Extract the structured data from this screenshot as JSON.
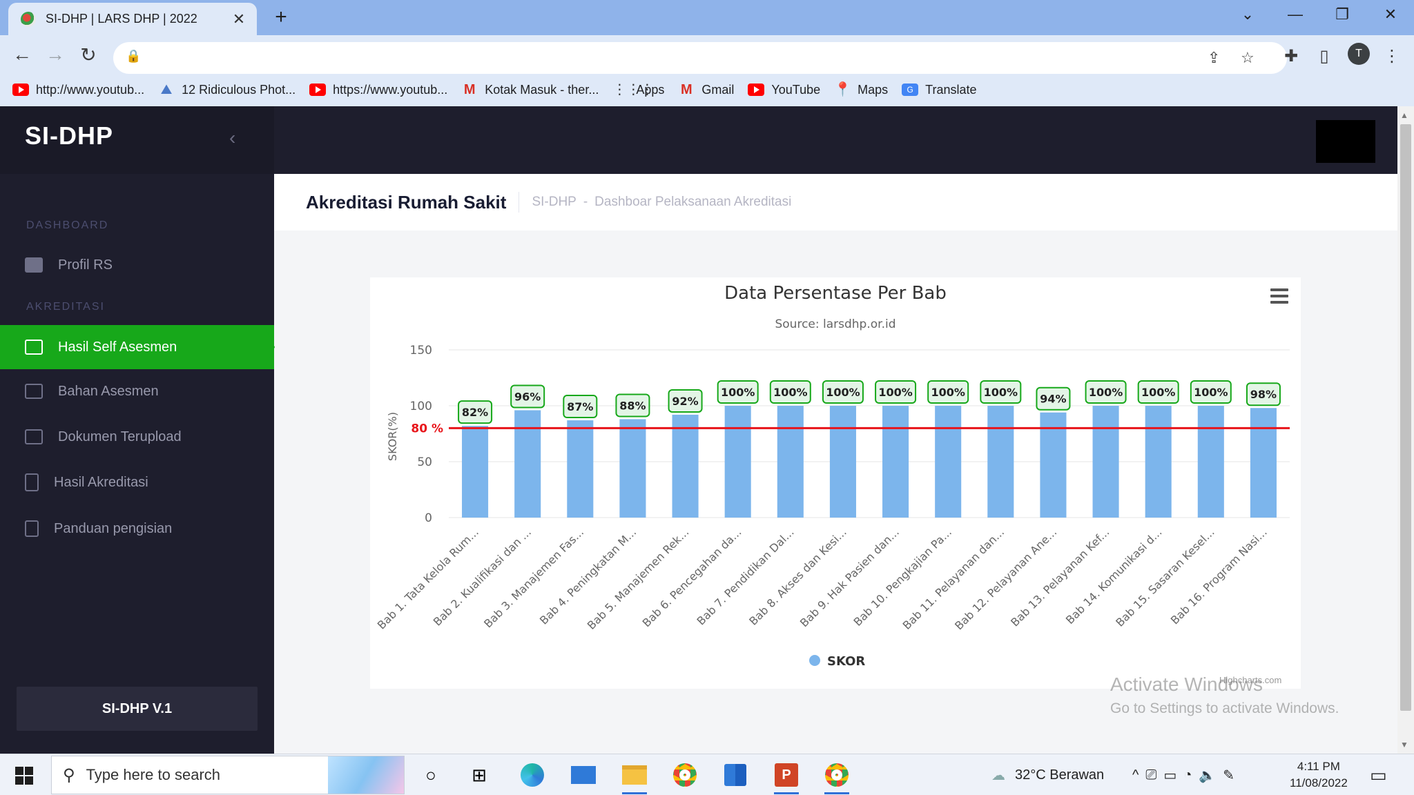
{
  "browser": {
    "tab_title": "SI-DHP | LARS DHP | 2022",
    "new_tab_glyph": "+",
    "bookmarks": [
      {
        "icon": "youtube-icon",
        "label": "http://www.youtub..."
      },
      {
        "icon": "photo-icon",
        "label": "12 Ridiculous Phot..."
      },
      {
        "icon": "youtube-icon",
        "label": "https://www.youtub..."
      },
      {
        "icon": "gmail-icon",
        "label": "Kotak Masuk - ther..."
      },
      {
        "icon": "apps-icon",
        "label": "Apps"
      },
      {
        "icon": "gmail-icon",
        "label": "Gmail"
      },
      {
        "icon": "youtube-icon",
        "label": "YouTube"
      },
      {
        "icon": "maps-icon",
        "label": "Maps"
      },
      {
        "icon": "translate-icon",
        "label": "Translate"
      }
    ],
    "profile_initial": "T"
  },
  "sidebar": {
    "brand": "SI-DHP",
    "sections": [
      {
        "title": "DASHBOARD"
      },
      {
        "title": "AKREDITASI"
      }
    ],
    "items": [
      {
        "label": "Profil RS",
        "icon": "id-card-icon",
        "active": false
      },
      {
        "label": "Hasil Self Asesmen",
        "icon": "calendar-icon",
        "active": true
      },
      {
        "label": "Bahan Asesmen",
        "icon": "edit-icon",
        "active": false
      },
      {
        "label": "Dokumen Terupload",
        "icon": "window-icon",
        "active": false
      },
      {
        "label": "Hasil Akreditasi",
        "icon": "file-icon",
        "active": false
      },
      {
        "label": "Panduan pengisian",
        "icon": "book-icon",
        "active": false
      }
    ],
    "version": "SI-DHP V.1"
  },
  "header": {
    "page_title": "Akreditasi Rumah Sakit",
    "breadcrumb": [
      "SI-DHP",
      "-",
      "Dashboar Pelaksanaan Akreditasi"
    ]
  },
  "chart_data": {
    "type": "bar",
    "title": "Data Persentase Per Bab",
    "subtitle": "Source: larsdhp.or.id",
    "ylabel": "SKOR(%)",
    "ylim": [
      0,
      150
    ],
    "yticks": [
      0,
      50,
      100,
      150
    ],
    "grid": true,
    "categories": [
      "Bab 1. Tata Kelola Rum...",
      "Bab 2. Kualifikasi dan ...",
      "Bab 3. Manajemen Fas...",
      "Bab 4. Peningkatan M...",
      "Bab 5. Manajemen Rek...",
      "Bab 6. Pencegahan da...",
      "Bab 7. Pendidikan Dal...",
      "Bab 8. Akses dan Kesi...",
      "Bab 9. Hak Pasien dan...",
      "Bab 10. Pengkajian Pa...",
      "Bab 11. Pelayanan dan...",
      "Bab 12. Pelayanan Ane...",
      "Bab 13. Pelayanan Kef...",
      "Bab 14. Komunikasi d...",
      "Bab 15. Sasaran Kesel...",
      "Bab 16. Program Nasi..."
    ],
    "series": [
      {
        "name": "SKOR",
        "color": "#7cb5ec",
        "values": [
          82,
          96,
          87,
          88,
          92,
          100,
          100,
          100,
          100,
          100,
          100,
          94,
          100,
          100,
          100,
          98
        ]
      }
    ],
    "data_labels": [
      "82%",
      "96%",
      "87%",
      "88%",
      "92%",
      "100%",
      "100%",
      "100%",
      "100%",
      "100%",
      "100%",
      "94%",
      "100%",
      "100%",
      "100%",
      "98%"
    ],
    "plot_line": {
      "value": 80,
      "label": "80 %",
      "color": "#e8141a"
    },
    "legend_position": "bottom-center",
    "credits": "Highcharts.com"
  },
  "watermark": {
    "line1": "Activate Windows",
    "line2": "Go to Settings to activate Windows."
  },
  "taskbar": {
    "search_placeholder": "Type here to search",
    "weather": "32°C  Berawan",
    "time": "4:11 PM",
    "date": "11/08/2022"
  },
  "colors": {
    "sidebar_bg": "#1e1e2d",
    "active_item": "#17a81a",
    "bar": "#7cb5ec",
    "label_border": "#17a81a",
    "threshold": "#e8141a"
  }
}
